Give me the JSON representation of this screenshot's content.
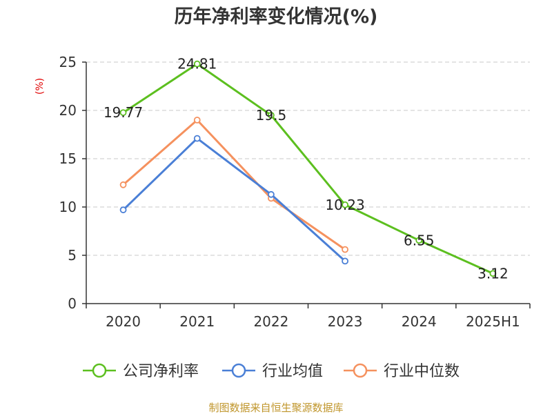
{
  "chart_data": {
    "type": "line",
    "title": "历年净利率变化情况(%)",
    "ylabel": "(%)",
    "categories": [
      "2020",
      "2021",
      "2022",
      "2023",
      "2024",
      "2025H1"
    ],
    "y_ticks": [
      "0",
      "5",
      "10",
      "15",
      "20",
      "25"
    ],
    "ylim": [
      0,
      25
    ],
    "grid": true,
    "legend_position": "bottom",
    "series": [
      {
        "name": "公司净利率",
        "color": "#5cbf1f",
        "values": [
          19.77,
          24.81,
          19.5,
          10.23,
          6.55,
          3.12
        ],
        "labels": [
          "19.77",
          "24.81",
          "19.5",
          "10.23",
          "6.55",
          "3.12"
        ]
      },
      {
        "name": "行业均值",
        "color": "#4a7fd6",
        "values": [
          9.7,
          17.1,
          11.3,
          4.4,
          null,
          null
        ]
      },
      {
        "name": "行业中位数",
        "color": "#f5915e",
        "values": [
          12.3,
          19.0,
          10.9,
          5.6,
          null,
          null
        ]
      }
    ]
  },
  "source_note": "制图数据来自恒生聚源数据库"
}
